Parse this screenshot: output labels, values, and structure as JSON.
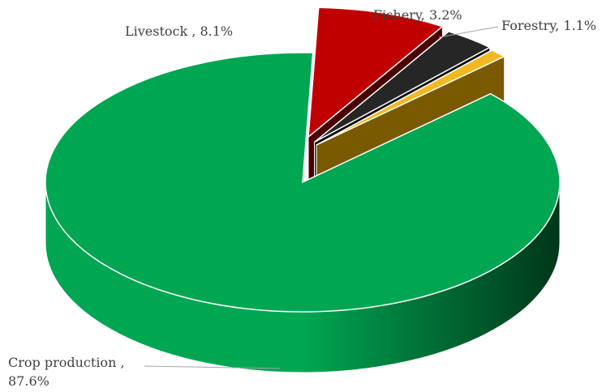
{
  "chart_data": {
    "type": "pie",
    "variant": "3d-exploded",
    "title": "",
    "slices": [
      {
        "name": "Crop production",
        "value": 87.6,
        "label_lines": [
          "Crop production ,",
          "87.6%"
        ],
        "color": "#00A651",
        "side_dark": "#00361A",
        "side_light": "#00A651",
        "exploded": false
      },
      {
        "name": "Livestock",
        "value": 8.1,
        "label_lines": [
          "Livestock , 8.1%"
        ],
        "color": "#C00000",
        "side_dark": "#4A0000",
        "side_light": "#8B0000",
        "exploded": true
      },
      {
        "name": "Fishery",
        "value": 3.2,
        "label_lines": [
          "Fishery, 3.2%"
        ],
        "color": "#262626",
        "side_dark": "#0A0A0A",
        "side_light": "#1A1A1A",
        "exploded": true
      },
      {
        "name": "Forestry",
        "value": 1.1,
        "label_lines": [
          "Forestry, 1.1%"
        ],
        "color": "#F2B822",
        "side_dark": "#7A5A00",
        "side_light": "#C08A10",
        "exploded": true
      }
    ]
  }
}
